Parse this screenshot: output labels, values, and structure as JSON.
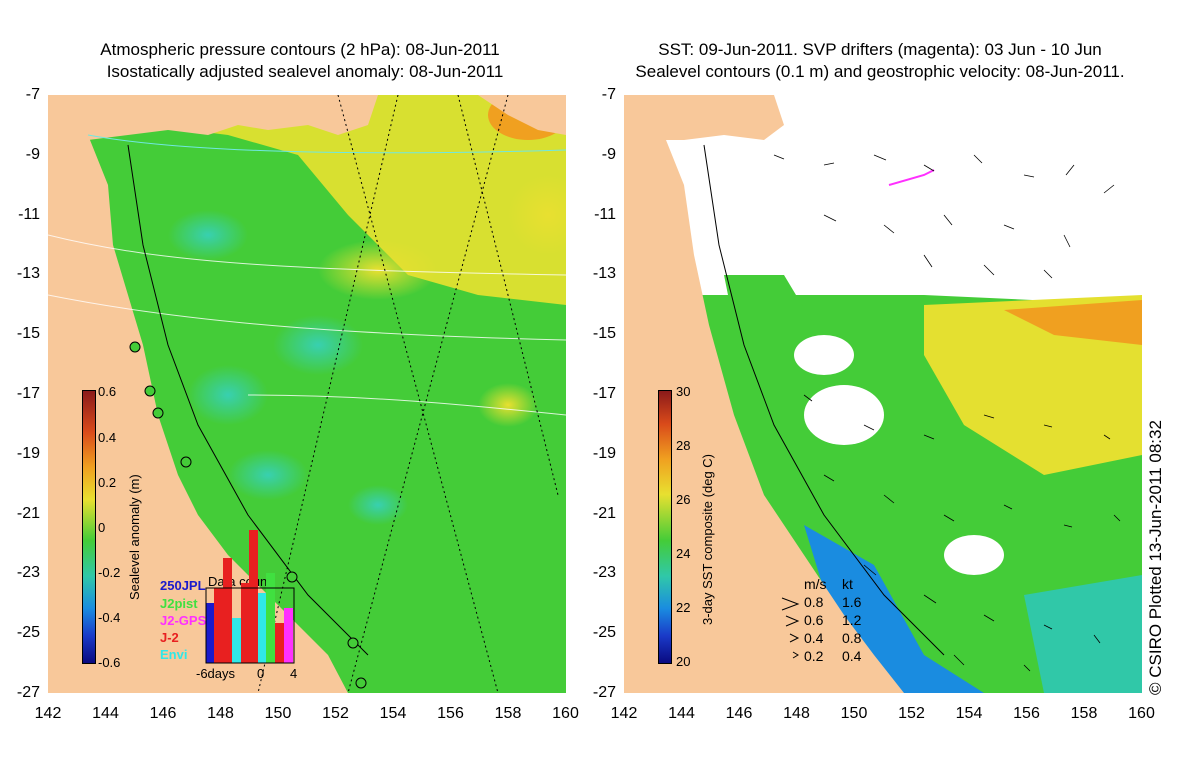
{
  "left_panel": {
    "title_line1": "Atmospheric pressure contours (2 hPa): 08-Jun-2011",
    "title_line2": "Isostatically adjusted sealevel anomaly: 08-Jun-2011",
    "colorbar_label": "Sealevel anomaly (m)",
    "colorbar_ticks": [
      "0.6",
      "0.4",
      "0.2",
      "0",
      "-0.2",
      "-0.4",
      "-0.6"
    ],
    "data_count": {
      "title": "Data count",
      "legend": [
        "250JPL",
        "J2pist",
        "J2-GPS",
        "J-2",
        "Envi"
      ],
      "xlabels": [
        "-6days",
        "0",
        "4"
      ]
    }
  },
  "right_panel": {
    "title_line1": "SST: 09-Jun-2011. SVP drifters (magenta): 03 Jun - 10 Jun",
    "title_line2": "Sealevel contours (0.1 m) and geostrophic velocity: 08-Jun-2011.",
    "colorbar_label": "3-day SST composite (deg C)",
    "colorbar_ticks": [
      "30",
      "28",
      "26",
      "24",
      "22",
      "20"
    ],
    "velocity_legend": {
      "header": [
        "m/s",
        "kt"
      ],
      "rows": [
        [
          "0.8",
          "1.6"
        ],
        [
          "0.6",
          "1.2"
        ],
        [
          "0.4",
          "0.8"
        ],
        [
          "0.2",
          "0.4"
        ]
      ]
    }
  },
  "y_axis_labels": [
    "-7",
    "-9",
    "-11",
    "-13",
    "-15",
    "-17",
    "-19",
    "-21",
    "-23",
    "-25",
    "-27"
  ],
  "x_axis_labels": [
    "142",
    "144",
    "146",
    "148",
    "150",
    "152",
    "154",
    "156",
    "158",
    "160"
  ],
  "credit": "© CSIRO Plotted 13-Jun-2011 08:32",
  "colors": {
    "land": "#f8c89a",
    "ocean_green": "#3fcc33",
    "ocean_yellow": "#e4e030",
    "ocean_cyan": "#30c8a8",
    "magenta": "#ff30ff"
  }
}
